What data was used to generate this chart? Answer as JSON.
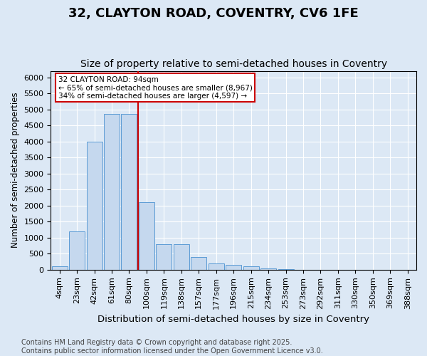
{
  "title1": "32, CLAYTON ROAD, COVENTRY, CV6 1FE",
  "title2": "Size of property relative to semi-detached houses in Coventry",
  "xlabel": "Distribution of semi-detached houses by size in Coventry",
  "ylabel": "Number of semi-detached properties",
  "categories": [
    "4sqm",
    "23sqm",
    "42sqm",
    "61sqm",
    "80sqm",
    "100sqm",
    "119sqm",
    "138sqm",
    "157sqm",
    "177sqm",
    "196sqm",
    "215sqm",
    "234sqm",
    "253sqm",
    "273sqm",
    "292sqm",
    "311sqm",
    "330sqm",
    "350sqm",
    "369sqm",
    "388sqm"
  ],
  "values": [
    100,
    1200,
    4000,
    4850,
    4850,
    2100,
    800,
    800,
    400,
    200,
    150,
    100,
    30,
    10,
    5,
    2,
    1,
    1,
    0,
    0,
    0
  ],
  "bar_color": "#c5d8ee",
  "bar_edge_color": "#5b9bd5",
  "vline_index": 4,
  "vline_color": "#cc0000",
  "ylim": [
    0,
    6200
  ],
  "yticks": [
    0,
    500,
    1000,
    1500,
    2000,
    2500,
    3000,
    3500,
    4000,
    4500,
    5000,
    5500,
    6000
  ],
  "annotation_title": "32 CLAYTON ROAD: 94sqm",
  "annotation_line1": "← 65% of semi-detached houses are smaller (8,967)",
  "annotation_line2": "34% of semi-detached houses are larger (4,597) →",
  "footnote1": "Contains HM Land Registry data © Crown copyright and database right 2025.",
  "footnote2": "Contains public sector information licensed under the Open Government Licence v3.0.",
  "bg_color": "#dce8f5",
  "title1_fontsize": 13,
  "title2_fontsize": 10,
  "xlabel_fontsize": 9.5,
  "ylabel_fontsize": 8.5,
  "tick_fontsize": 8,
  "footnote_fontsize": 7
}
